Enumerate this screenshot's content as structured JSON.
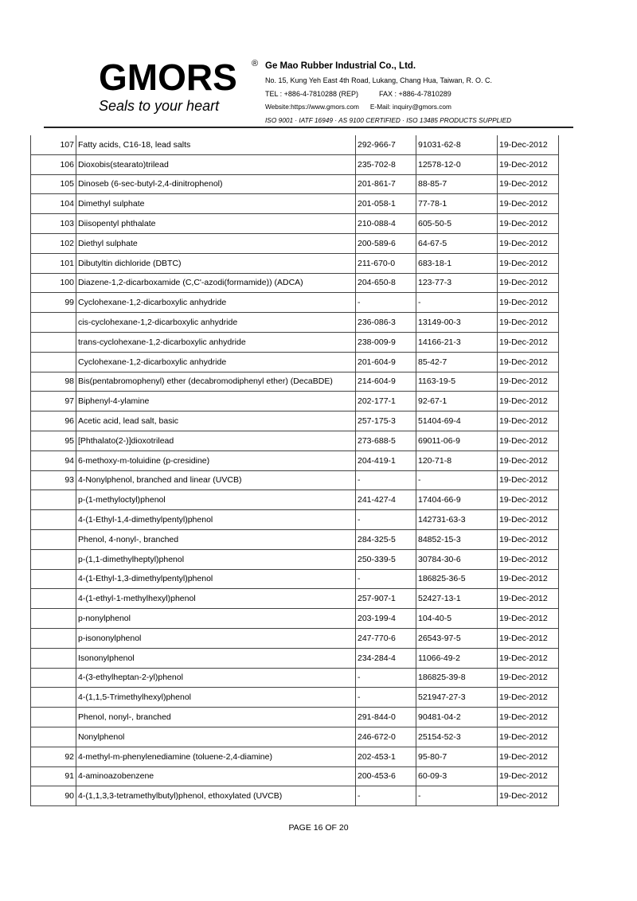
{
  "header": {
    "logo_text": "GMORS",
    "tagline": "Seals to your heart",
    "company": "Ge Mao Rubber Industrial Co., Ltd.",
    "address": "No. 15, Kung Yeh East 4th Road, Lukang, Chang Hua, Taiwan, R. O. C.",
    "tel": "TEL : +886-4-7810288 (REP)",
    "fax": "FAX : +886-4-7810289",
    "website": "Website:https://www.gmors.com",
    "email": "E-Mail: inquiry@gmors.com",
    "certifications": "ISO 9001  ·  IATF 16949  ·  AS 9100 CERTIFIED  ·  ISO 13485 PRODUCTS SUPPLIED"
  },
  "rows": [
    [
      "107",
      "Fatty acids, C16-18, lead salts",
      "292-966-7",
      "91031-62-8",
      "19-Dec-2012"
    ],
    [
      "106",
      "Dioxobis(stearato)trilead",
      "235-702-8",
      "12578-12-0",
      "19-Dec-2012"
    ],
    [
      "105",
      "Dinoseb (6-sec-butyl-2,4-dinitrophenol)",
      "201-861-7",
      "88-85-7",
      "19-Dec-2012"
    ],
    [
      "104",
      "Dimethyl sulphate",
      "201-058-1",
      "77-78-1",
      "19-Dec-2012"
    ],
    [
      "103",
      "Diisopentyl phthalate",
      "210-088-4",
      "605-50-5",
      "19-Dec-2012"
    ],
    [
      "102",
      "Diethyl sulphate",
      "200-589-6",
      "64-67-5",
      "19-Dec-2012"
    ],
    [
      "101",
      "Dibutyltin dichloride (DBTC)",
      "211-670-0",
      "683-18-1",
      "19-Dec-2012"
    ],
    [
      "100",
      "Diazene-1,2-dicarboxamide (C,C'-azodi(formamide)) (ADCA)",
      "204-650-8",
      "123-77-3",
      "19-Dec-2012"
    ],
    [
      "99",
      "Cyclohexane-1,2-dicarboxylic anhydride",
      "-",
      "-",
      "19-Dec-2012"
    ],
    [
      "",
      "cis-cyclohexane-1,2-dicarboxylic anhydride",
      "236-086-3",
      "13149-00-3",
      "19-Dec-2012"
    ],
    [
      "",
      "trans-cyclohexane-1,2-dicarboxylic anhydride",
      "238-009-9",
      "14166-21-3",
      "19-Dec-2012"
    ],
    [
      "",
      "Cyclohexane-1,2-dicarboxylic anhydride",
      "201-604-9",
      "85-42-7",
      "19-Dec-2012"
    ],
    [
      "98",
      "Bis(pentabromophenyl) ether (decabromodiphenyl ether) (DecaBDE)",
      "214-604-9",
      "1163-19-5",
      "19-Dec-2012"
    ],
    [
      "97",
      "Biphenyl-4-ylamine",
      "202-177-1",
      "92-67-1",
      "19-Dec-2012"
    ],
    [
      "96",
      "Acetic acid, lead salt, basic",
      "257-175-3",
      "51404-69-4",
      "19-Dec-2012"
    ],
    [
      "95",
      "[Phthalato(2-)]dioxotrilead",
      "273-688-5",
      "69011-06-9",
      "19-Dec-2012"
    ],
    [
      "94",
      "6-methoxy-m-toluidine (p-cresidine)",
      "204-419-1",
      "120-71-8",
      "19-Dec-2012"
    ],
    [
      "93",
      "4-Nonylphenol, branched and linear (UVCB)",
      "-",
      "-",
      "19-Dec-2012"
    ],
    [
      "",
      "p-(1-methyloctyl)phenol",
      "241-427-4",
      "17404-66-9",
      "19-Dec-2012"
    ],
    [
      "",
      "4-(1-Ethyl-1,4-dimethylpentyl)phenol",
      "-",
      "142731-63-3",
      "19-Dec-2012"
    ],
    [
      "",
      "Phenol, 4-nonyl-, branched",
      "284-325-5",
      "84852-15-3",
      "19-Dec-2012"
    ],
    [
      "",
      "p-(1,1-dimethylheptyl)phenol",
      "250-339-5",
      "30784-30-6",
      "19-Dec-2012"
    ],
    [
      "",
      "4-(1-Ethyl-1,3-dimethylpentyl)phenol",
      "-",
      "186825-36-5",
      "19-Dec-2012"
    ],
    [
      "",
      "4-(1-ethyl-1-methylhexyl)phenol",
      "257-907-1",
      "52427-13-1",
      "19-Dec-2012"
    ],
    [
      "",
      "p-nonylphenol",
      "203-199-4",
      "104-40-5",
      "19-Dec-2012"
    ],
    [
      "",
      "p-isononylphenol",
      "247-770-6",
      "26543-97-5",
      "19-Dec-2012"
    ],
    [
      "",
      "Isononylphenol",
      "234-284-4",
      "11066-49-2",
      "19-Dec-2012"
    ],
    [
      "",
      "4-(3-ethylheptan-2-yl)phenol",
      "-",
      "186825-39-8",
      "19-Dec-2012"
    ],
    [
      "",
      "4-(1,1,5-Trimethylhexyl)phenol",
      "-",
      "521947-27-3",
      "19-Dec-2012"
    ],
    [
      "",
      "Phenol, nonyl-, branched",
      "291-844-0",
      "90481-04-2",
      "19-Dec-2012"
    ],
    [
      "",
      "Nonylphenol",
      "246-672-0",
      "25154-52-3",
      "19-Dec-2012"
    ],
    [
      "92",
      "4-methyl-m-phenylenediamine (toluene-2,4-diamine)",
      "202-453-1",
      "95-80-7",
      "19-Dec-2012"
    ],
    [
      "91",
      "4-aminoazobenzene",
      "200-453-6",
      "60-09-3",
      "19-Dec-2012"
    ],
    [
      "90",
      "4-(1,1,3,3-tetramethylbutyl)phenol, ethoxylated (UVCB)",
      "-",
      "-",
      "19-Dec-2012"
    ]
  ],
  "footer": {
    "page_label": "PAGE  16  OF 20"
  }
}
